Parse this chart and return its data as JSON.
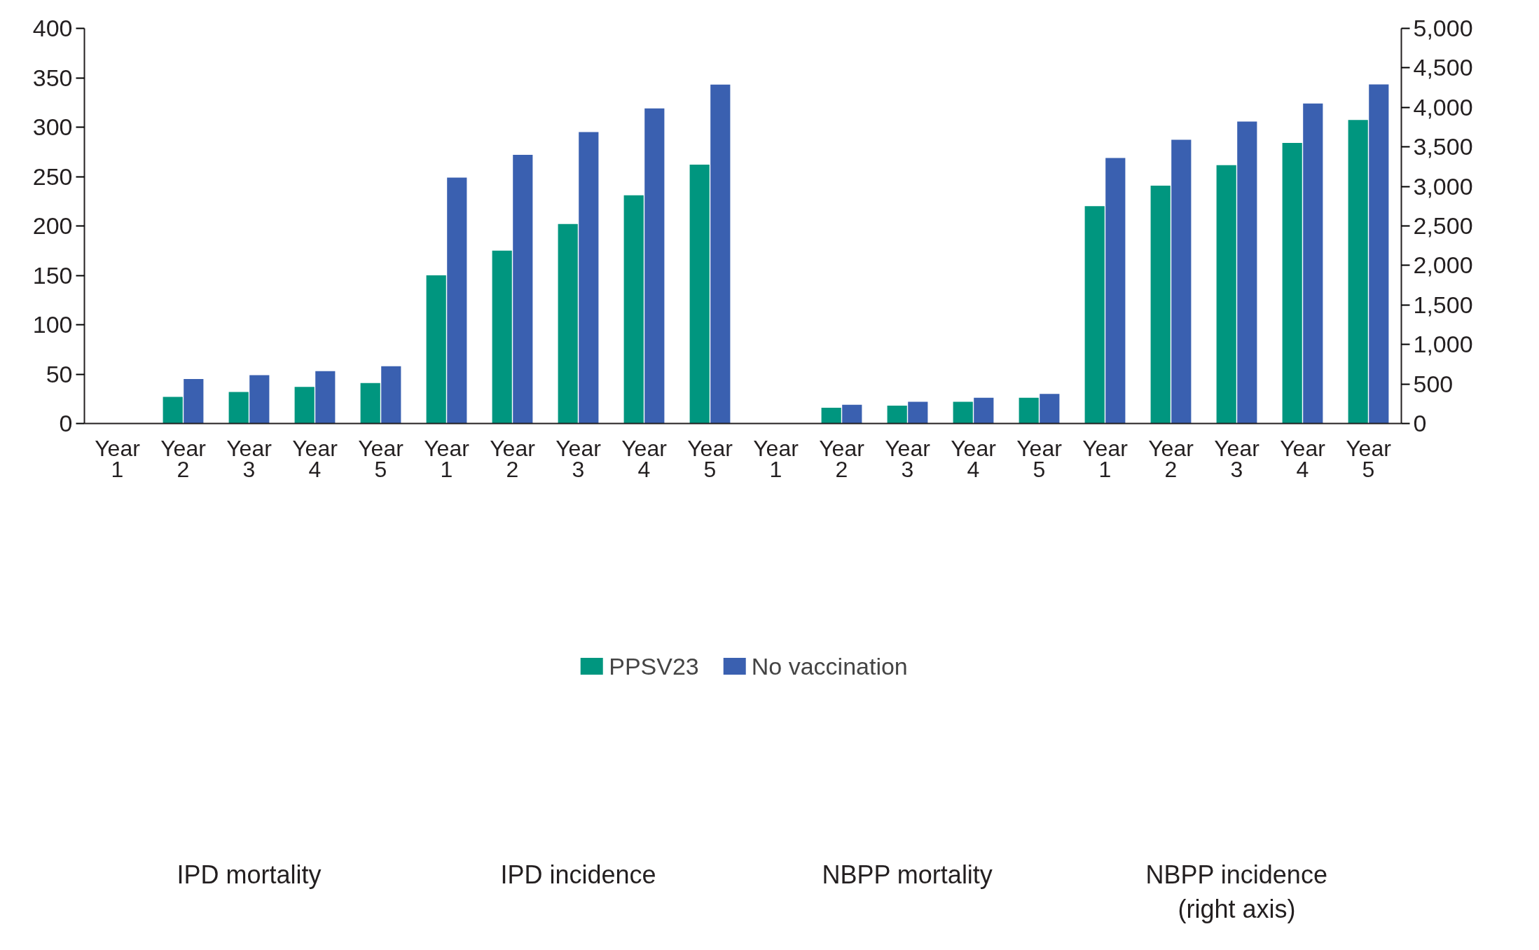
{
  "chart_data": {
    "type": "bar",
    "categories": [
      "Year 1",
      "Year 2",
      "Year 3",
      "Year 4",
      "Year 5",
      "Year 1",
      "Year 2",
      "Year 3",
      "Year 4",
      "Year 5",
      "Year 1",
      "Year 2",
      "Year 3",
      "Year 4",
      "Year 5",
      "Year 1",
      "Year 2",
      "Year 3",
      "Year 4",
      "Year 5"
    ],
    "series": [
      {
        "name": "PPSV23",
        "color": "#00967f",
        "values": [
          null,
          27,
          32,
          37,
          41,
          150,
          175,
          202,
          231,
          262,
          null,
          16,
          18,
          22,
          26,
          null,
          null,
          null,
          null,
          null
        ]
      },
      {
        "name": "No vaccination",
        "color": "#3a60b0",
        "values": [
          null,
          45,
          49,
          53,
          58,
          249,
          272,
          295,
          319,
          343,
          null,
          19,
          22,
          26,
          30,
          null,
          null,
          null,
          null,
          null
        ]
      },
      {
        "color": "#00967f",
        "axis": "y2",
        "values": [
          null,
          null,
          null,
          null,
          null,
          null,
          null,
          null,
          null,
          null,
          null,
          null,
          null,
          null,
          null,
          2750,
          3010,
          3270,
          3550,
          3840
        ]
      },
      {
        "color": "#3a60b0",
        "axis": "y2",
        "values": [
          null,
          null,
          null,
          null,
          null,
          null,
          null,
          null,
          null,
          null,
          null,
          null,
          null,
          null,
          null,
          3360,
          3590,
          3820,
          4050,
          4290
        ]
      }
    ],
    "ylim": [
      0,
      400
    ],
    "yticks": [
      0,
      50,
      100,
      150,
      200,
      250,
      300,
      350,
      400
    ],
    "y2lim": [
      0,
      5000
    ],
    "y2ticks": [
      0,
      {
        "value": 500,
        "label": "500"
      },
      {
        "value": 1000,
        "label": "1,000"
      },
      {
        "value": 1500,
        "label": "1,500"
      },
      {
        "value": 2000,
        "label": "2,000"
      },
      {
        "value": 2500,
        "label": "2,500"
      },
      {
        "value": 3000,
        "label": "3,000"
      },
      {
        "value": 3500,
        "label": "3,500"
      },
      {
        "value": 4000,
        "label": "4,000"
      },
      {
        "value": 4500,
        "label": "4,500"
      },
      {
        "value": 5000,
        "label": "5,000"
      }
    ],
    "annotations": [
      "IPD mortality",
      "IPD incidence",
      "NBPP mortality",
      "NBPP incidence\n(right axis)"
    ],
    "grid": false,
    "legend": "bottom"
  }
}
